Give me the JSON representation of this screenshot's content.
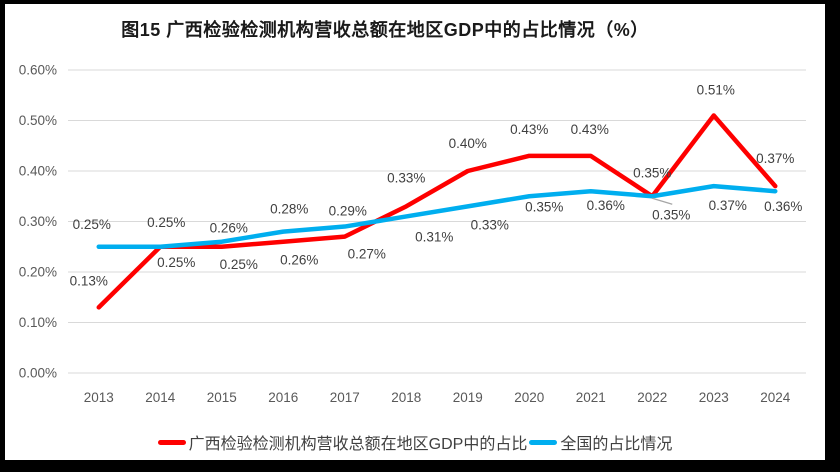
{
  "chart_data": {
    "type": "line",
    "title": "图15 广西检验检测机构营收总额在地区GDP中的占比情况（%）",
    "categories": [
      "2013",
      "2014",
      "2015",
      "2016",
      "2017",
      "2018",
      "2019",
      "2020",
      "2021",
      "2022",
      "2023",
      "2024"
    ],
    "yticks": [
      "0.00%",
      "0.10%",
      "0.20%",
      "0.30%",
      "0.40%",
      "0.50%",
      "0.60%"
    ],
    "ylim": [
      0,
      0.6
    ],
    "grid": true,
    "legend_position": "bottom",
    "series": [
      {
        "name": "广西检验检测机构营收总额在地区GDP中的占比",
        "color": "#FE0000",
        "values": [
          0.13,
          0.25,
          0.25,
          0.26,
          0.27,
          0.33,
          0.4,
          0.43,
          0.43,
          0.35,
          0.51,
          0.37
        ],
        "labels": [
          "0.13%",
          "0.25%",
          "0.25%",
          "0.26%",
          "0.27%",
          "0.33%",
          "0.40%",
          "0.43%",
          "0.43%",
          "0.35%",
          "0.51%",
          "0.37%"
        ],
        "label_offsets": [
          [
            -10,
            -22
          ],
          [
            16,
            20
          ],
          [
            17,
            22
          ],
          [
            16,
            23
          ],
          [
            22,
            22
          ],
          [
            0,
            -24
          ],
          [
            0,
            -23
          ],
          [
            0,
            -22
          ],
          [
            -1,
            -22
          ],
          [
            19,
            23
          ],
          [
            2,
            -21
          ],
          [
            0,
            -23
          ]
        ]
      },
      {
        "name": "全国的占比情况",
        "color": "#00AEEF",
        "values": [
          0.25,
          0.25,
          0.26,
          0.28,
          0.29,
          0.31,
          0.33,
          0.35,
          0.36,
          0.35,
          0.37,
          0.36
        ],
        "labels": [
          "0.25%",
          "0.25%",
          "0.26%",
          "0.28%",
          "0.29%",
          "0.31%",
          "0.33%",
          "0.35%",
          "0.36%",
          "0.35%",
          "0.37%",
          "0.36%"
        ],
        "label_offsets": [
          [
            -7,
            -18
          ],
          [
            6,
            -20
          ],
          [
            7,
            -9
          ],
          [
            6,
            -18
          ],
          [
            3,
            -11
          ],
          [
            28,
            25
          ],
          [
            22,
            23
          ],
          [
            15,
            15
          ],
          [
            15,
            19
          ],
          [
            0,
            -19
          ],
          [
            14,
            24
          ],
          [
            8,
            20
          ]
        ]
      }
    ],
    "leader_lines": [
      {
        "series": 0,
        "point": 9,
        "dx1": 0,
        "dy1": 2,
        "dx2": 20,
        "dy2": 8,
        "color": "#A6A6A6"
      }
    ]
  },
  "styles": {
    "grid_color": "#D9D9D9",
    "tick_color": "#595959",
    "label_color": "#404040",
    "series_red": "#FE0000",
    "series_blue": "#00AEEF",
    "page_background": "#FFFFFF",
    "frame_background": "#000000"
  }
}
